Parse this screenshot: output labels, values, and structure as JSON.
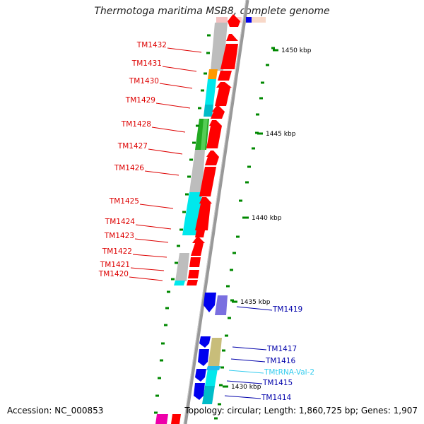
{
  "title": "Thermotoga maritima MSB8, complete genome",
  "footer": {
    "accession": "Accession: NC_000853",
    "topology": "Topology: circular; Length: 1,860,725 bp; Genes: 1,907"
  },
  "colors": {
    "forward_cds": "#ff0000",
    "reverse_cds": "#0000ee",
    "reverse_cds_light": "#7a6fe0",
    "trna": "#22bbee",
    "label_red": "#dd0000",
    "label_blue": "#0000aa",
    "label_trna": "#33ccee",
    "backbone": "#888888",
    "tick": "#008800",
    "cog_gray": "#bdbdbd",
    "cog_cyan": "#00e8ec",
    "cog_teal": "#00bcc8",
    "cog_orange": "#ff9900",
    "cog_green": "#22aa22",
    "cog_khaki": "#c8bd7a"
  },
  "kbp_labels": [
    {
      "text": "1450 kbp",
      "kbp": 1450
    },
    {
      "text": "1445 kbp",
      "kbp": 1445
    },
    {
      "text": "1440 kbp",
      "kbp": 1440
    },
    {
      "text": "1435 kbp",
      "kbp": 1435
    },
    {
      "text": "1430 kbp",
      "kbp": 1430
    }
  ],
  "gene_labels": [
    {
      "text": "TM1432",
      "group": "forward"
    },
    {
      "text": "TM1431",
      "group": "forward"
    },
    {
      "text": "TM1430",
      "group": "forward"
    },
    {
      "text": "TM1429",
      "group": "forward"
    },
    {
      "text": "TM1428",
      "group": "forward"
    },
    {
      "text": "TM1427",
      "group": "forward"
    },
    {
      "text": "TM1426",
      "group": "forward"
    },
    {
      "text": "TM1425",
      "group": "forward"
    },
    {
      "text": "TM1424",
      "group": "forward"
    },
    {
      "text": "TM1423",
      "group": "forward"
    },
    {
      "text": "TM1422",
      "group": "forward"
    },
    {
      "text": "TM1421",
      "group": "forward"
    },
    {
      "text": "TM1420",
      "group": "forward"
    },
    {
      "text": "TM1419",
      "group": "reverse"
    },
    {
      "text": "TM1417",
      "group": "reverse"
    },
    {
      "text": "TM1416",
      "group": "reverse"
    },
    {
      "text": "TMtRNA-Val-2",
      "group": "trna"
    },
    {
      "text": "TM1415",
      "group": "reverse"
    },
    {
      "text": "TM1414",
      "group": "reverse"
    }
  ]
}
